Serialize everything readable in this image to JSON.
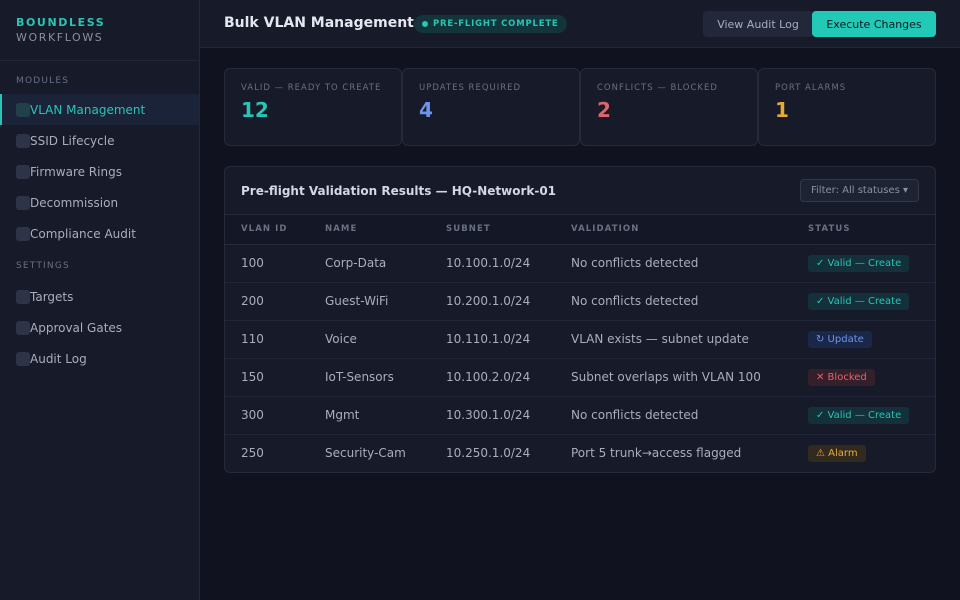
{
  "brand": {
    "line1": "BOUNDLESS",
    "line2": "WORKFLOWS"
  },
  "sidebar": {
    "modules_label": "MODULES",
    "modules": [
      {
        "label": "VLAN Management",
        "active": true
      },
      {
        "label": "SSID Lifecycle"
      },
      {
        "label": "Firmware Rings"
      },
      {
        "label": "Decommission"
      },
      {
        "label": "Compliance Audit"
      }
    ],
    "settings_label": "SETTINGS",
    "settings": [
      {
        "label": "Targets"
      },
      {
        "label": "Approval Gates"
      },
      {
        "label": "Audit Log"
      }
    ]
  },
  "header": {
    "title": "Bulk VLAN Management",
    "badge": "PRE-FLIGHT COMPLETE",
    "audit_button": "View Audit Log",
    "execute_button": "Execute Changes"
  },
  "stats": [
    {
      "label": "VALID — READY TO CREATE",
      "value": "12",
      "color": "#2bc4b4"
    },
    {
      "label": "UPDATES REQUIRED",
      "value": "4",
      "color": "#6c94ef"
    },
    {
      "label": "CONFLICTS — BLOCKED",
      "value": "2",
      "color": "#e0646c"
    },
    {
      "label": "PORT ALARMS",
      "value": "1",
      "color": "#e8a93a"
    }
  ],
  "results": {
    "title": "Pre-flight Validation Results — HQ-Network-01",
    "filter": "Filter: All statuses ▾",
    "columns": [
      "VLAN ID",
      "NAME",
      "SUBNET",
      "VALIDATION",
      "STATUS"
    ],
    "rows": [
      {
        "vlan": "100",
        "name": "Corp-Data",
        "subnet": "10.100.1.0/24",
        "validation": "No conflicts detected",
        "status": "✓ Valid — Create",
        "kind": "valid"
      },
      {
        "vlan": "200",
        "name": "Guest-WiFi",
        "subnet": "10.200.1.0/24",
        "validation": "No conflicts detected",
        "status": "✓ Valid — Create",
        "kind": "valid"
      },
      {
        "vlan": "110",
        "name": "Voice",
        "subnet": "10.110.1.0/24",
        "validation": "VLAN exists — subnet update",
        "status": "↻ Update",
        "kind": "update"
      },
      {
        "vlan": "150",
        "name": "IoT-Sensors",
        "subnet": "10.100.2.0/24",
        "validation": "Subnet overlaps with VLAN 100",
        "status": "✕ Blocked",
        "kind": "blocked"
      },
      {
        "vlan": "300",
        "name": "Mgmt",
        "subnet": "10.300.1.0/24",
        "validation": "No conflicts detected",
        "status": "✓ Valid — Create",
        "kind": "valid"
      },
      {
        "vlan": "250",
        "name": "Security-Cam",
        "subnet": "10.250.1.0/24",
        "validation": "Port 5 trunk→access flagged",
        "status": "⚠ Alarm",
        "kind": "alarm"
      }
    ]
  }
}
